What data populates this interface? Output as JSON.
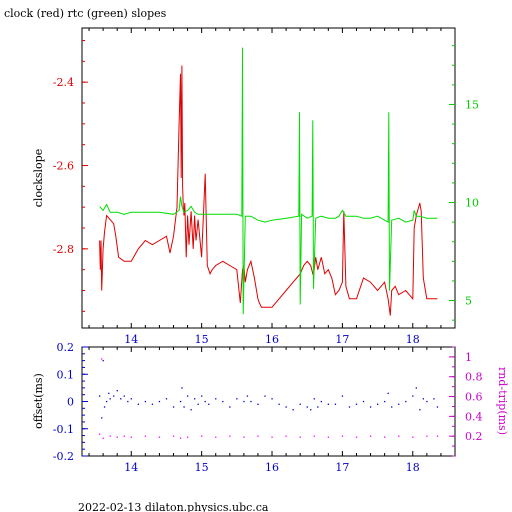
{
  "chart_data": [
    {
      "type": "line",
      "title": "clock (red) rtc (green) slopes",
      "ylabel_left": "clockslope",
      "ylabel_right": "",
      "xlim": [
        13.3,
        18.6
      ],
      "ylim_left": [
        -2.99,
        -2.27
      ],
      "ylim_right": [
        3.6,
        18.9
      ],
      "x_ticks": [
        "14",
        "15",
        "16",
        "17",
        "18"
      ],
      "y_ticks_left": [
        "-2.4",
        "-2.6",
        "-2.8"
      ],
      "y_ticks_right": [
        "5",
        "10",
        "15"
      ],
      "colors": {
        "clock": "#e00000",
        "rtc": "#00dd00",
        "left_axis": "#e00000",
        "right_axis": "#00cc00"
      },
      "series": [
        {
          "name": "clock (red)",
          "axis": "left",
          "x": [
            13.55,
            13.56,
            13.57,
            13.58,
            13.6,
            13.62,
            13.65,
            13.7,
            13.75,
            13.78,
            13.82,
            13.9,
            14.0,
            14.1,
            14.2,
            14.3,
            14.4,
            14.5,
            14.55,
            14.6,
            14.65,
            14.68,
            14.7,
            14.71,
            14.72,
            14.73,
            14.74,
            14.75,
            14.76,
            14.78,
            14.8,
            14.82,
            14.85,
            14.88,
            14.9,
            14.92,
            14.95,
            15.0,
            15.05,
            15.08,
            15.1,
            15.12,
            15.15,
            15.2,
            15.3,
            15.4,
            15.5,
            15.55,
            15.58,
            15.6,
            15.62,
            15.65,
            15.7,
            15.75,
            15.8,
            15.82,
            15.85,
            15.9,
            16.0,
            16.1,
            16.2,
            16.3,
            16.35,
            16.4,
            16.45,
            16.5,
            16.55,
            16.58,
            16.6,
            16.62,
            16.65,
            16.7,
            16.75,
            16.8,
            16.85,
            16.9,
            16.95,
            17.0,
            17.02,
            17.05,
            17.1,
            17.2,
            17.3,
            17.4,
            17.5,
            17.6,
            17.65,
            17.68,
            17.7,
            17.75,
            17.8,
            17.9,
            18.0,
            18.02,
            18.05,
            18.1,
            18.12,
            18.15,
            18.2,
            18.3,
            18.35
          ],
          "y": [
            -2.78,
            -2.85,
            -2.78,
            -2.9,
            -2.8,
            -2.76,
            -2.72,
            -2.73,
            -2.74,
            -2.77,
            -2.82,
            -2.83,
            -2.83,
            -2.8,
            -2.78,
            -2.79,
            -2.78,
            -2.77,
            -2.81,
            -2.77,
            -2.7,
            -2.5,
            -2.38,
            -2.63,
            -2.36,
            -2.65,
            -2.7,
            -2.72,
            -2.69,
            -2.82,
            -2.72,
            -2.79,
            -2.71,
            -2.8,
            -2.72,
            -2.78,
            -2.73,
            -2.82,
            -2.62,
            -2.84,
            -2.85,
            -2.86,
            -2.85,
            -2.84,
            -2.83,
            -2.84,
            -2.85,
            -2.93,
            -2.85,
            -2.84,
            -2.88,
            -2.85,
            -2.83,
            -2.87,
            -2.92,
            -2.93,
            -2.94,
            -2.94,
            -2.94,
            -2.92,
            -2.9,
            -2.88,
            -2.87,
            -2.86,
            -2.84,
            -2.83,
            -2.84,
            -2.86,
            -2.85,
            -2.82,
            -2.85,
            -2.82,
            -2.86,
            -2.85,
            -2.87,
            -2.91,
            -2.9,
            -2.88,
            -2.71,
            -2.89,
            -2.92,
            -2.92,
            -2.87,
            -2.88,
            -2.9,
            -2.88,
            -2.92,
            -2.96,
            -2.9,
            -2.89,
            -2.91,
            -2.9,
            -2.92,
            -2.75,
            -2.72,
            -2.69,
            -2.71,
            -2.87,
            -2.92,
            -2.92,
            -2.92
          ]
        },
        {
          "name": "rtc (green)",
          "axis": "right",
          "x": [
            13.55,
            13.6,
            13.65,
            13.7,
            13.8,
            13.9,
            14.0,
            14.2,
            14.4,
            14.6,
            14.68,
            14.7,
            14.72,
            14.75,
            14.8,
            14.85,
            14.9,
            14.95,
            15.0,
            15.1,
            15.3,
            15.5,
            15.57,
            15.58,
            15.59,
            15.62,
            15.7,
            15.8,
            15.9,
            16.0,
            16.2,
            16.38,
            16.39,
            16.4,
            16.42,
            16.5,
            16.57,
            16.58,
            16.59,
            16.62,
            16.7,
            16.8,
            16.9,
            16.95,
            17.0,
            17.05,
            17.1,
            17.2,
            17.3,
            17.4,
            17.5,
            17.6,
            17.65,
            17.66,
            17.67,
            17.7,
            17.8,
            17.9,
            18.0,
            18.02,
            18.05,
            18.1,
            18.2,
            18.35
          ],
          "y": [
            9.8,
            9.6,
            9.9,
            9.5,
            9.5,
            9.4,
            9.5,
            9.5,
            9.5,
            9.4,
            9.6,
            10.3,
            9.8,
            9.5,
            9.6,
            9.8,
            9.5,
            9.4,
            9.4,
            9.4,
            9.4,
            9.4,
            9.3,
            17.9,
            4.3,
            9.3,
            9.3,
            9.1,
            9.0,
            9.1,
            9.2,
            9.3,
            14.6,
            4.8,
            9.4,
            9.2,
            9.3,
            14.2,
            5.6,
            9.2,
            9.3,
            9.2,
            9.2,
            9.3,
            9.6,
            9.3,
            9.3,
            9.3,
            9.2,
            9.2,
            9.3,
            9.1,
            9.0,
            14.6,
            5.5,
            9.1,
            9.2,
            9.0,
            9.1,
            9.6,
            9.3,
            9.3,
            9.2,
            9.2
          ]
        }
      ]
    },
    {
      "type": "scatter",
      "title": "",
      "ylabel_left": "offset(ms)",
      "ylabel_right": "rnd-trip(ms)",
      "xlim": [
        13.3,
        18.6
      ],
      "ylim_left": [
        -0.2,
        0.2
      ],
      "ylim_right": [
        0.0,
        1.1
      ],
      "x_ticks": [
        "14",
        "15",
        "16",
        "17",
        "18"
      ],
      "y_ticks_left": [
        "0.2",
        "0.1",
        "0",
        "-0.1",
        "-0.2"
      ],
      "y_ticks_right": [
        "1",
        "0.8",
        "0.6",
        "0.4",
        "0.2"
      ],
      "colors": {
        "offset": "#0000cc",
        "rndtrip": "#ff00ff",
        "left_axis": "#0000cc",
        "right_axis": "#cc00cc"
      },
      "series": [
        {
          "name": "offset(ms)",
          "axis": "left",
          "x": [
            13.55,
            13.58,
            13.6,
            13.62,
            13.65,
            13.68,
            13.7,
            13.75,
            13.8,
            13.85,
            13.9,
            13.95,
            14.0,
            14.1,
            14.2,
            14.3,
            14.4,
            14.5,
            14.6,
            14.7,
            14.72,
            14.75,
            14.8,
            14.85,
            14.9,
            14.95,
            15.0,
            15.05,
            15.1,
            15.2,
            15.3,
            15.4,
            15.5,
            15.6,
            15.65,
            15.7,
            15.8,
            15.9,
            16.0,
            16.1,
            16.2,
            16.3,
            16.4,
            16.5,
            16.55,
            16.6,
            16.65,
            16.7,
            16.8,
            16.9,
            17.0,
            17.1,
            17.2,
            17.3,
            17.4,
            17.5,
            17.6,
            17.65,
            17.7,
            17.8,
            17.9,
            18.0,
            18.05,
            18.1,
            18.15,
            18.2,
            18.3,
            18.35
          ],
          "y": [
            0.02,
            -0.06,
            0.15,
            -0.02,
            0.0,
            0.03,
            0.01,
            0.02,
            0.04,
            0.01,
            0.02,
            0.0,
            0.01,
            -0.01,
            0.0,
            -0.01,
            0.0,
            0.01,
            -0.02,
            0.0,
            0.05,
            -0.02,
            0.02,
            -0.03,
            0.01,
            -0.01,
            0.02,
            0.0,
            -0.01,
            0.01,
            0.0,
            -0.02,
            0.01,
            0.0,
            0.02,
            0.0,
            -0.01,
            0.02,
            0.01,
            -0.01,
            -0.02,
            -0.03,
            -0.01,
            -0.02,
            -0.03,
            0.01,
            -0.02,
            0.0,
            -0.01,
            -0.01,
            0.02,
            -0.02,
            -0.01,
            0.0,
            -0.02,
            -0.01,
            0.0,
            0.03,
            -0.02,
            -0.01,
            0.0,
            0.02,
            0.05,
            -0.03,
            0.01,
            0.0,
            0.01,
            -0.02
          ]
        },
        {
          "name": "rnd-trip(ms)",
          "axis": "right",
          "x": [
            13.55,
            13.58,
            13.6,
            13.7,
            13.8,
            13.9,
            14.0,
            14.2,
            14.4,
            14.6,
            14.7,
            14.8,
            15.0,
            15.2,
            15.4,
            15.6,
            15.8,
            16.0,
            16.2,
            16.4,
            16.6,
            16.8,
            17.0,
            17.2,
            17.4,
            17.6,
            17.8,
            18.0,
            18.2,
            18.35
          ],
          "y": [
            0.22,
            0.98,
            0.18,
            0.2,
            0.19,
            0.2,
            0.19,
            0.2,
            0.19,
            0.2,
            0.18,
            0.19,
            0.2,
            0.19,
            0.2,
            0.19,
            0.2,
            0.19,
            0.2,
            0.19,
            0.2,
            0.19,
            0.2,
            0.19,
            0.2,
            0.19,
            0.2,
            0.19,
            0.2,
            0.2
          ]
        }
      ]
    }
  ],
  "footer": "2022-02-13  dilaton.physics.ubc.ca"
}
